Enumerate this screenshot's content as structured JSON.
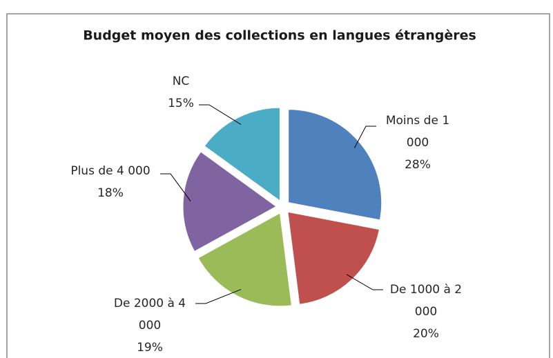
{
  "chart_data": {
    "type": "pie",
    "title": "Budget moyen des collections en langues étrangères",
    "categories": [
      "Moins de 1 000",
      "De 1000 à 2 000",
      "De 2000 à 4 000",
      "Plus de 4 000",
      "NC"
    ],
    "values": [
      28,
      20,
      19,
      18,
      15
    ],
    "value_labels": [
      "28%",
      "20%",
      "19%",
      "18%",
      "15%"
    ],
    "colors": [
      "#4f81bd",
      "#c0504d",
      "#9bbb59",
      "#8064a2",
      "#4bacc6"
    ]
  }
}
